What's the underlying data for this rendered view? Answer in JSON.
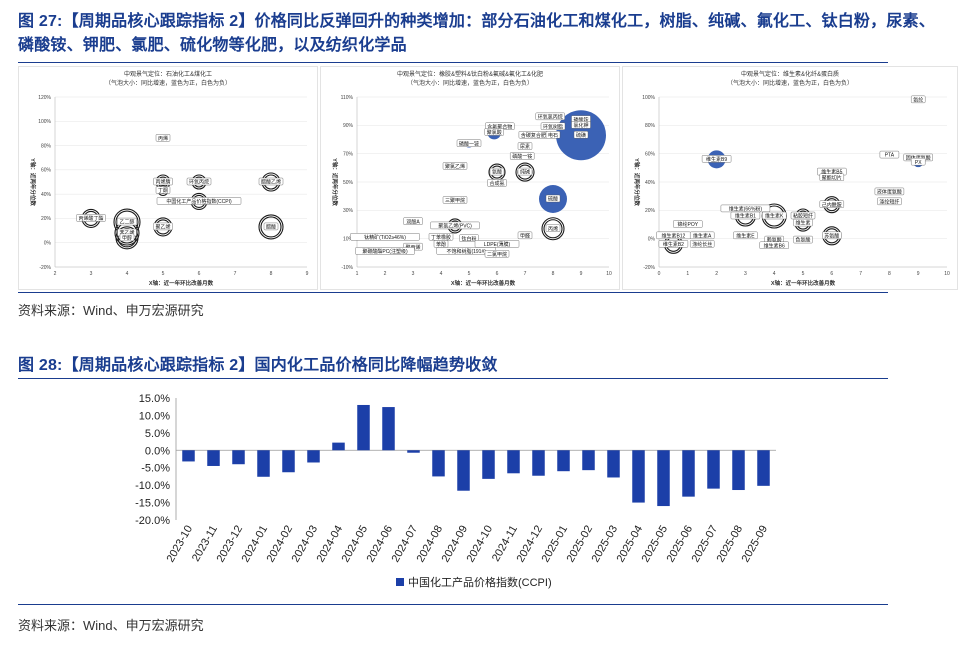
{
  "figure1": {
    "title_line1": "图 27:【周期品核心跟踪指标 2】价格同比反弹回升的种类增加：部分石油化工和煤化工，树脂、纯碱、氟化工、钛白粉，尿素、",
    "title_line2": "磷酸铵、钾肥、氯肥、硫化物等化肥，以及纺织化学品",
    "source": "资料来源：Wind、申万宏源研究"
  },
  "figure2": {
    "title": "图 28:【周期品核心跟踪指标 2】国内化工品价格同比降幅趋势收敛",
    "source": "资料来源：Wind、申万宏源研究"
  },
  "chart_data": [
    {
      "type": "scatter",
      "title": "中观景气定位：石油化工&煤化工",
      "subtitle": "（气泡大小：同比增速，蓝色为正，白色为负）",
      "xlabel": "X轴：近一年环比改善月数",
      "ylabel": "Y轴：近两年分位数",
      "xlim": [
        2,
        9
      ],
      "ylim": [
        -20,
        120
      ],
      "xticks": [
        2,
        3,
        4,
        5,
        6,
        7,
        8,
        9
      ],
      "yticks": [
        "-20%",
        "0%",
        "20%",
        "40%",
        "60%",
        "80%",
        "100%",
        "120%"
      ],
      "points": [
        {
          "label": "丙烯",
          "x": 5.0,
          "y": 86,
          "r": 0,
          "sign": "neg"
        },
        {
          "label": "丙烯腈",
          "x": 5.0,
          "y": 50,
          "r": 7,
          "sign": "neg"
        },
        {
          "label": "丁酮",
          "x": 5.0,
          "y": 43,
          "r": 5,
          "sign": "neg"
        },
        {
          "label": "环氧丙烷",
          "x": 6.0,
          "y": 50,
          "r": 7,
          "sign": "neg"
        },
        {
          "label": "醋酸乙烯",
          "x": 8.0,
          "y": 50,
          "r": 9,
          "sign": "neg"
        },
        {
          "label": "中国化工产品价格指数(CCPI)",
          "x": 6.0,
          "y": 34,
          "r": 8,
          "sign": "neg"
        },
        {
          "label": "丙烯酸丁酯",
          "x": 3.0,
          "y": 20,
          "r": 9,
          "sign": "neg"
        },
        {
          "label": "聚乙烯",
          "x": 5.0,
          "y": 13,
          "r": 9,
          "sign": "neg"
        },
        {
          "label": "醋酸",
          "x": 8.0,
          "y": 13,
          "r": 12,
          "sign": "neg"
        },
        {
          "label": "乙二醇",
          "x": 4.0,
          "y": 17,
          "r": 13,
          "sign": "neg"
        },
        {
          "label": "苯乙烯",
          "x": 4.0,
          "y": 8,
          "r": 12,
          "sign": "neg"
        },
        {
          "label": "甲醇",
          "x": 4.0,
          "y": 4,
          "r": 11,
          "sign": "neg"
        }
      ]
    },
    {
      "type": "scatter",
      "title": "中观景气定位：橡胶&塑料&钛白粉&氟碱&氟化工&化肥",
      "subtitle": "（气泡大小：同比增速，蓝色为正，白色为负）",
      "xlabel": "X轴：近一年环比改善月数",
      "ylabel": "Y轴：近两年分位数",
      "xlim": [
        1,
        10
      ],
      "ylim": [
        -10,
        110
      ],
      "xticks": [
        1,
        2,
        3,
        4,
        5,
        6,
        7,
        8,
        9,
        10
      ],
      "yticks": [
        "-10%",
        "10%",
        "30%",
        "50%",
        "70%",
        "90%",
        "110%"
      ],
      "points": [
        {
          "label": "环氧氯丙烷",
          "x": 7.9,
          "y": 96,
          "r": 0,
          "sign": "neg"
        },
        {
          "label": "磷酸铵",
          "x": 9.0,
          "y": 94,
          "r": 9,
          "sign": "pos"
        },
        {
          "label": "氯化钾",
          "x": 9.0,
          "y": 90,
          "r": 0,
          "sign": "neg"
        },
        {
          "label": "环氧树脂",
          "x": 8.0,
          "y": 89,
          "r": 0,
          "sign": "neg"
        },
        {
          "label": "含氟聚合物",
          "x": 6.1,
          "y": 89,
          "r": 0,
          "sign": "neg"
        },
        {
          "label": "聚氯酸",
          "x": 5.9,
          "y": 85,
          "r": 7,
          "sign": "pos"
        },
        {
          "label": "含碳复合肥",
          "x": 7.3,
          "y": 83,
          "r": 0,
          "sign": "neg"
        },
        {
          "label": "电石",
          "x": 8.0,
          "y": 83,
          "r": 0,
          "sign": "neg"
        },
        {
          "label": "硫磺",
          "x": 9.0,
          "y": 83,
          "r": 25,
          "sign": "pos"
        },
        {
          "label": "磷酸一铵",
          "x": 5.0,
          "y": 77,
          "r": 4,
          "sign": "lt"
        },
        {
          "label": "尿素",
          "x": 7.0,
          "y": 75,
          "r": 0,
          "sign": "neg"
        },
        {
          "label": "磷酸一铵",
          "x": 6.9,
          "y": 68,
          "r": 0,
          "sign": "neg"
        },
        {
          "label": "聚氯乙烯",
          "x": 4.5,
          "y": 61,
          "r": 0,
          "sign": "neg"
        },
        {
          "label": "纯碱",
          "x": 7.0,
          "y": 57,
          "r": 9,
          "sign": "neg"
        },
        {
          "label": "氨酸",
          "x": 6.0,
          "y": 57,
          "r": 8,
          "sign": "neg"
        },
        {
          "label": "合成氨",
          "x": 6.0,
          "y": 49,
          "r": 0,
          "sign": "neg"
        },
        {
          "label": "硫酸",
          "x": 8.0,
          "y": 38,
          "r": 14,
          "sign": "pos"
        },
        {
          "label": "三聚甲烷",
          "x": 4.5,
          "y": 37,
          "r": 0,
          "sign": "neg"
        },
        {
          "label": "双酚A",
          "x": 3.0,
          "y": 22,
          "r": 0,
          "sign": "neg"
        },
        {
          "label": "聚氯乙烯(PVC)",
          "x": 4.5,
          "y": 19,
          "r": 7,
          "sign": "neg"
        },
        {
          "label": "丙烯",
          "x": 8.0,
          "y": 17,
          "r": 11,
          "sign": "neg"
        },
        {
          "label": "钛精矿(TiO2≥46%)",
          "x": 2.0,
          "y": 11,
          "r": 0,
          "sign": "neg"
        },
        {
          "label": "丁苯橡胶",
          "x": 4.0,
          "y": 11,
          "r": 0,
          "sign": "neg"
        },
        {
          "label": "甲醛",
          "x": 7.0,
          "y": 12,
          "r": 0,
          "sign": "neg"
        },
        {
          "label": "钛白粉",
          "x": 5.0,
          "y": 10,
          "r": 0,
          "sign": "neg"
        },
        {
          "label": "苯酚",
          "x": 4.0,
          "y": 6,
          "r": 0,
          "sign": "neg"
        },
        {
          "label": "LDPE(薄膜)",
          "x": 6.0,
          "y": 6,
          "r": 0,
          "sign": "neg"
        },
        {
          "label": "聚丙烯",
          "x": 3.0,
          "y": 4,
          "r": 0,
          "sign": "neg"
        },
        {
          "label": "聚碳酸酯PC(注塑级)",
          "x": 2.0,
          "y": 1,
          "r": 0,
          "sign": "neg"
        },
        {
          "label": "不饱和树脂(191#)",
          "x": 4.9,
          "y": 1,
          "r": 0,
          "sign": "neg"
        },
        {
          "label": "二氯甲烷",
          "x": 6.0,
          "y": -1,
          "r": 0,
          "sign": "neg"
        }
      ]
    },
    {
      "type": "scatter",
      "title": "中观景气定位：维生素&化纤&蛋白质",
      "subtitle": "（气泡大小：同比增速，蓝色为正，白色为负）",
      "xlabel": "X轴：近一年环比改善月数",
      "ylabel": "Y轴：近两年分位数",
      "xlim": [
        0,
        10
      ],
      "ylim": [
        -20,
        100
      ],
      "xticks": [
        0,
        1,
        2,
        3,
        4,
        5,
        6,
        7,
        8,
        9,
        10
      ],
      "yticks": [
        "-20%",
        "0%",
        "20%",
        "40%",
        "60%",
        "80%",
        "100%"
      ],
      "points": [
        {
          "label": "氨纶",
          "x": 9.0,
          "y": 98,
          "r": 0,
          "sign": "neg"
        },
        {
          "label": "维生素B9",
          "x": 2.0,
          "y": 56,
          "r": 9,
          "sign": "pos"
        },
        {
          "label": "PTA",
          "x": 8.0,
          "y": 59,
          "r": 0,
          "sign": "neg"
        },
        {
          "label": "固体蛋氨酸",
          "x": 9.0,
          "y": 57,
          "r": 0,
          "sign": "neg"
        },
        {
          "label": "PX",
          "x": 9.0,
          "y": 54,
          "r": 5,
          "sign": "pos"
        },
        {
          "label": "维生素B5",
          "x": 6.0,
          "y": 47,
          "r": 0,
          "sign": "neg"
        },
        {
          "label": "聚酯切片",
          "x": 6.0,
          "y": 43,
          "r": 0,
          "sign": "neg"
        },
        {
          "label": "液体蛋氨酸",
          "x": 8.0,
          "y": 33,
          "r": 0,
          "sign": "neg"
        },
        {
          "label": "涤纶短纤",
          "x": 8.0,
          "y": 26,
          "r": 0,
          "sign": "neg"
        },
        {
          "label": "己内酰胺",
          "x": 6.0,
          "y": 24,
          "r": 8,
          "sign": "neg"
        },
        {
          "label": "维生素(66%粉)",
          "x": 3.0,
          "y": 21,
          "r": 0,
          "sign": "neg"
        },
        {
          "label": "维生素B1",
          "x": 3.0,
          "y": 16,
          "r": 10,
          "sign": "neg"
        },
        {
          "label": "维生素K",
          "x": 4.0,
          "y": 16,
          "r": 12,
          "sign": "neg"
        },
        {
          "label": "粘胶短纤",
          "x": 5.0,
          "y": 16,
          "r": 7,
          "sign": "neg"
        },
        {
          "label": "锦纶POY",
          "x": 1.0,
          "y": 10,
          "r": 0,
          "sign": "neg"
        },
        {
          "label": "维生素",
          "x": 5.0,
          "y": 11,
          "r": 8,
          "sign": "neg"
        },
        {
          "label": "维生素B12",
          "x": 0.5,
          "y": 2,
          "r": 0,
          "sign": "neg"
        },
        {
          "label": "维生素A",
          "x": 1.5,
          "y": 2,
          "r": 0,
          "sign": "neg"
        },
        {
          "label": "维生素E",
          "x": 3.0,
          "y": 2,
          "r": 0,
          "sign": "neg"
        },
        {
          "label": "苏氨酸",
          "x": 6.0,
          "y": 2,
          "r": 9,
          "sign": "neg"
        },
        {
          "label": "赖氨酸",
          "x": 4.0,
          "y": -1,
          "r": 0,
          "sign": "neg"
        },
        {
          "label": "色氨酸",
          "x": 5.0,
          "y": -1,
          "r": 0,
          "sign": "neg"
        },
        {
          "label": "维生素B2",
          "x": 0.5,
          "y": -4,
          "r": 9,
          "sign": "neg"
        },
        {
          "label": "涤纶长丝",
          "x": 1.5,
          "y": -4,
          "r": 0,
          "sign": "neg"
        },
        {
          "label": "维生素B6",
          "x": 4.0,
          "y": -5,
          "r": 0,
          "sign": "neg"
        }
      ]
    },
    {
      "type": "bar",
      "categories": [
        "2023-10",
        "2023-11",
        "2023-12",
        "2024-01",
        "2024-02",
        "2024-03",
        "2024-04",
        "2024-05",
        "2024-06",
        "2024-07",
        "2024-08",
        "2024-09",
        "2024-10",
        "2024-11",
        "2024-12",
        "2025-01",
        "2025-02",
        "2025-03",
        "2025-04",
        "2025-05",
        "2025-06",
        "2025-07",
        "2025-08",
        "2025-09"
      ],
      "series": [
        {
          "name": "中国化工产品价格指数(CCPI)",
          "values": [
            -3.2,
            -4.5,
            -4.0,
            -7.6,
            -6.3,
            -3.5,
            2.2,
            13.0,
            12.4,
            -0.7,
            -7.5,
            -11.6,
            -8.2,
            -6.6,
            -7.3,
            -6.0,
            -5.7,
            -7.8,
            -15.0,
            -16.0,
            -13.3,
            -11.0,
            -11.4,
            -10.2
          ]
        }
      ],
      "ylim": [
        -20,
        15
      ],
      "yticks": [
        "15.0%",
        "10.0%",
        "5.0%",
        "0.0%",
        "-5.0%",
        "-10.0%",
        "-15.0%",
        "-20.0%"
      ],
      "legend": "bottom",
      "color": "#1c3fa8"
    }
  ]
}
